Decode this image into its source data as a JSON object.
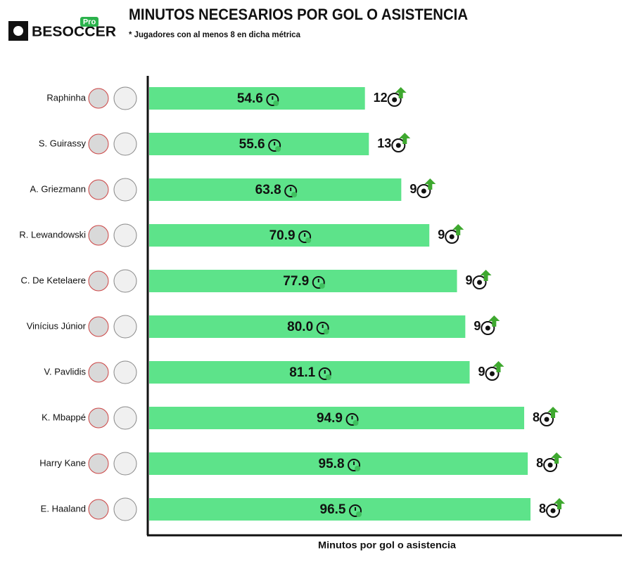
{
  "chart_data": {
    "type": "bar",
    "orientation": "horizontal",
    "title": "MINUTOS NECESARIOS POR GOL O ASISTENCIA",
    "subtitle": "* Jugadores con al menos 8 en dicha métrica",
    "brand": "BESOCCER",
    "brand_badge": "Pro",
    "x_label": "Minutos por gol o asistencia",
    "categories": [
      "Raphinha",
      "S. Guirassy",
      "A. Griezmann",
      "R. Lewandowski",
      "C. De Ketelaere",
      "Vinícius Júnior",
      "V. Pavlidis",
      "K. Mbappé",
      "Harry Kane",
      "E. Haaland"
    ],
    "values": [
      54.6,
      55.6,
      63.8,
      70.9,
      77.9,
      80.0,
      81.1,
      94.9,
      95.8,
      96.5
    ],
    "value_labels": [
      "54.6",
      "55.6",
      "63.8",
      "70.9",
      "77.9",
      "80.0",
      "81.1",
      "94.9",
      "95.8",
      "96.5"
    ],
    "counts": [
      12,
      13,
      9,
      9,
      9,
      9,
      9,
      8,
      8,
      8
    ],
    "color": "#5de38a",
    "xlim": [
      0,
      120
    ]
  }
}
